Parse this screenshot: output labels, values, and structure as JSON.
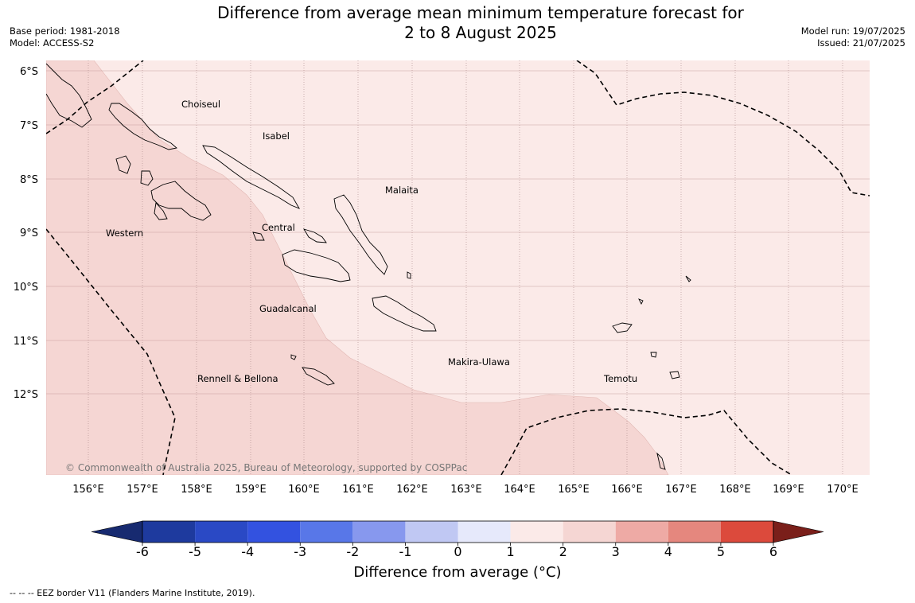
{
  "title": {
    "line1": "Difference from average mean minimum temperature forecast for",
    "line2": "2 to 8 August 2025"
  },
  "meta": {
    "base_period": "Base period: 1981-2018",
    "model": "Model: ACCESS-S2",
    "model_run": "Model run: 19/07/2025",
    "issued": "Issued: 21/07/2025"
  },
  "map": {
    "lon_labels": [
      "156°E",
      "157°E",
      "158°E",
      "159°E",
      "160°E",
      "161°E",
      "162°E",
      "163°E",
      "164°E",
      "165°E",
      "166°E",
      "167°E",
      "168°E",
      "169°E",
      "170°E"
    ],
    "lat_labels": [
      "6°S",
      "7°S",
      "8°S",
      "9°S",
      "10°S",
      "11°S",
      "12°S"
    ],
    "places": {
      "choiseul": "Choiseul",
      "isabel": "Isabel",
      "malaita": "Malaita",
      "western": "Western",
      "central": "Central",
      "guadalcanal": "Guadalcanal",
      "makira": "Makira-Ulawa",
      "rennell": "Rennell & Bellona",
      "temotu": "Temotu"
    },
    "copyright": "© Commonwealth of Australia 2025, Bureau of Meteorology, supported by COSPPac",
    "colors": {
      "band_0_1": "#fbeae8",
      "band_1_2": "#f5d6d3"
    }
  },
  "colorbar": {
    "ticks": [
      "-6",
      "-5",
      "-4",
      "-3",
      "-2",
      "-1",
      "0",
      "1",
      "2",
      "3",
      "4",
      "5",
      "6"
    ],
    "colors": [
      "#1e3a9e",
      "#2a49c5",
      "#3352e0",
      "#5877e8",
      "#8798ee",
      "#c0c8f3",
      "#e6e9fb",
      "#fbeae8",
      "#f5d6d3",
      "#eeaaa5",
      "#e5877e",
      "#dc4a3c",
      "#ad2a22"
    ],
    "under_color": "#172a70",
    "over_color": "#7a1f1a",
    "title": "Difference from average (°C)"
  },
  "footnote": "--  --  -- EEZ border V11 (Flanders Marine Institute, 2019)."
}
